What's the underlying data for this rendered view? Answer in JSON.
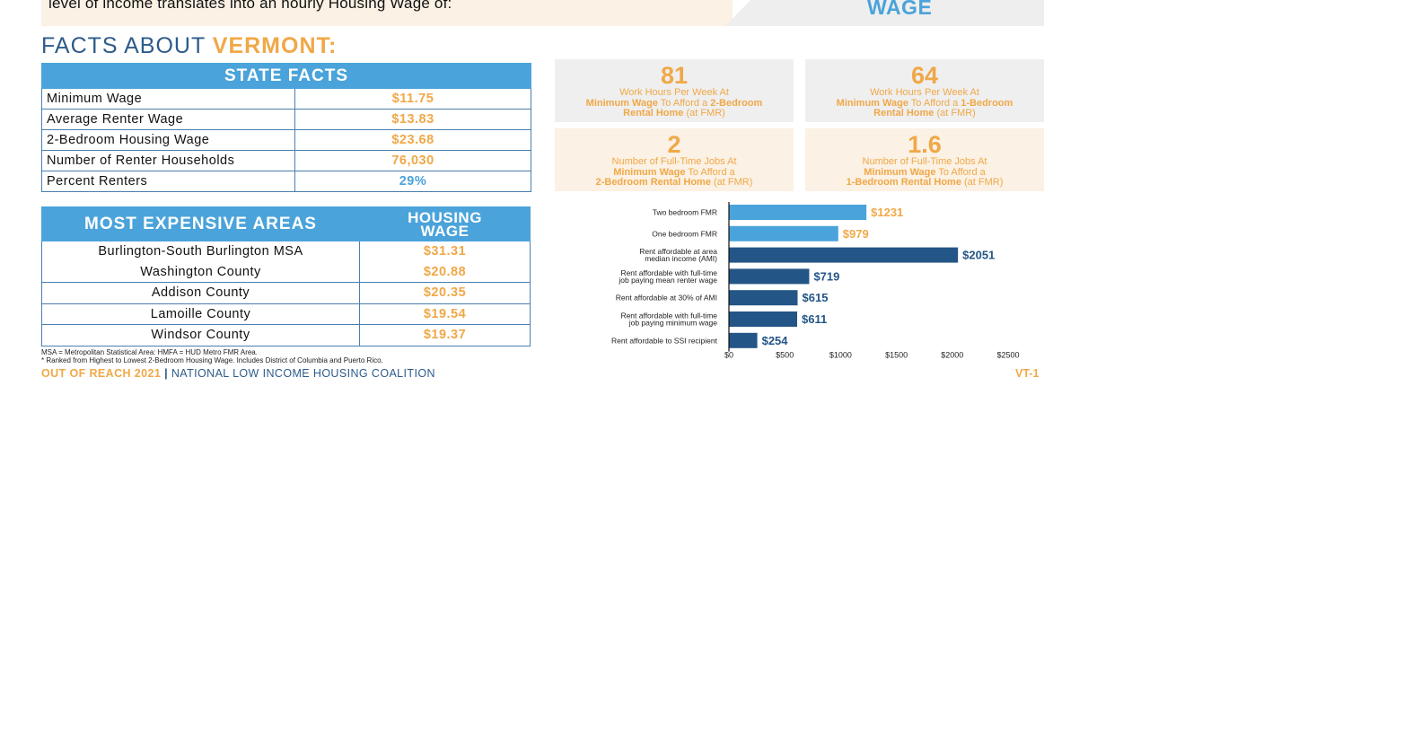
{
  "banner": {
    "text": "level of income translates into an hourly Housing Wage of:",
    "wage_label": "WAGE"
  },
  "facts": {
    "prefix": "FACTS ABOUT",
    "state": "VERMONT:"
  },
  "state_facts": {
    "header": "STATE FACTS",
    "rows": [
      {
        "label": "Minimum Wage",
        "value": "$11.75"
      },
      {
        "label": "Average Renter Wage",
        "value": "$13.83"
      },
      {
        "label": "2-Bedroom Housing Wage",
        "value": "$23.68"
      },
      {
        "label": "Number of Renter Households",
        "value": "76,030"
      },
      {
        "label": "Percent Renters",
        "value": "29%"
      }
    ]
  },
  "areas": {
    "header_left": "MOST EXPENSIVE AREAS",
    "header_right_1": "HOUSING",
    "header_right_2": "WAGE",
    "rows": [
      {
        "name": "Burlington-South Burlington MSA",
        "wage": "$31.31"
      },
      {
        "name": "Washington County",
        "wage": "$20.88"
      },
      {
        "name": "Addison County",
        "wage": "$20.35"
      },
      {
        "name": "Lamoille County",
        "wage": "$19.54"
      },
      {
        "name": "Windsor County",
        "wage": "$19.37"
      }
    ]
  },
  "notes": {
    "line1": "MSA = Metropolitan Statistical Area: HMFA = HUD Metro FMR Area.",
    "line2": "* Ranked from Highest to Lowest 2-Bedroom Housing Wage. Includes District of Columbia and Puerto Rico."
  },
  "footer": {
    "brand": "OUT OF REACH 2021",
    "separator": "|",
    "org": "NATIONAL LOW INCOME HOUSING COALITION",
    "page": "VT-1"
  },
  "stat_boxes": [
    {
      "number": "81",
      "line1": "Work Hours Per Week At",
      "line2_bold1": "Minimum Wage",
      "line2_mid": " To Afford a ",
      "line2_bold2": "2-Bedroom",
      "line3_bold": "Rental Home",
      "line3_rest": " (at FMR)"
    },
    {
      "number": "64",
      "line1": "Work Hours Per Week At",
      "line2_bold1": "Minimum Wage",
      "line2_mid": " To Afford a ",
      "line2_bold2": "1-Bedroom",
      "line3_bold": "Rental Home",
      "line3_rest": " (at FMR)"
    },
    {
      "number": "2",
      "line1": "Number of Full-Time Jobs At",
      "line2_bold1": "Minimum Wage",
      "line2_mid": " To Afford a",
      "line2_bold2": "",
      "line3_bold": "2-Bedroom Rental Home",
      "line3_rest": " (at FMR)"
    },
    {
      "number": "1.6",
      "line1": "Number of Full-Time Jobs At",
      "line2_bold1": "Minimum Wage",
      "line2_mid": " To Afford a",
      "line2_bold2": "",
      "line3_bold": "1-Bedroom Rental Home",
      "line3_rest": " (at FMR)"
    }
  ],
  "colors": {
    "accent_orange": "#f0a847",
    "accent_blue": "#4aa3da",
    "dark_blue": "#245587",
    "navy_text": "#2d5b8a"
  },
  "chart_data": {
    "type": "bar",
    "orientation": "horizontal",
    "categories": [
      [
        "Two bedroom FMR"
      ],
      [
        "One bedroom FMR"
      ],
      [
        "Rent affordable at area",
        "median income (AMI)"
      ],
      [
        "Rent affordable with full-time",
        "job paying mean renter wage"
      ],
      [
        "Rent affordable at 30% of AMI"
      ],
      [
        "Rent affordable with full-time",
        "job paying minimum wage"
      ],
      [
        "Rent affordable to SSI recipient"
      ]
    ],
    "values": [
      1231,
      979,
      2051,
      719,
      615,
      611,
      254
    ],
    "value_labels": [
      "$1231",
      "$979",
      "$2051",
      "$719",
      "$615",
      "$611",
      "$254"
    ],
    "bar_colors": [
      "#4aa3da",
      "#4aa3da",
      "#245587",
      "#245587",
      "#245587",
      "#245587",
      "#245587"
    ],
    "label_colors": [
      "#f0a847",
      "#f0a847",
      "#245587",
      "#245587",
      "#245587",
      "#245587",
      "#245587"
    ],
    "xlim": [
      0,
      2500
    ],
    "xticks": [
      0,
      500,
      1000,
      1500,
      2000,
      2500
    ],
    "xtick_labels": [
      "$0",
      "$500",
      "$1000",
      "$1500",
      "$2000",
      "$2500"
    ],
    "grid": false
  }
}
